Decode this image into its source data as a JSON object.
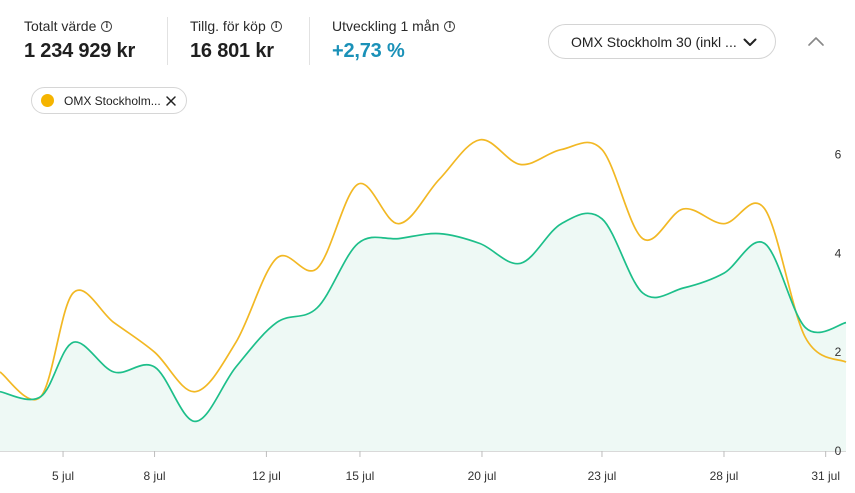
{
  "stats": {
    "total_value": {
      "label": "Totalt värde",
      "value": "1 234 929 kr"
    },
    "available": {
      "label": "Tillg. för köp",
      "value": "16 801 kr"
    },
    "development": {
      "label": "Utveckling 1 mån",
      "value": "+2,73 %"
    }
  },
  "index_select": {
    "selected": "OMX Stockholm 30 (inkl ..."
  },
  "comparison_chip": {
    "label": "OMX Stockholm..."
  },
  "colors": {
    "portfolio": "#1dbf8a",
    "portfolio_fill": "#eef9f5",
    "index": "#f2b824",
    "positive": "#1a91b8"
  },
  "chart_data": {
    "type": "line",
    "ylim": [
      0,
      6.7
    ],
    "y_ticks": [
      "0",
      "2",
      "4",
      "6"
    ],
    "x_ticks": [
      "5 jul",
      "8 jul",
      "12 jul",
      "15 jul",
      "20 jul",
      "23 jul",
      "28 jul",
      "31 jul"
    ],
    "grid": false,
    "series": [
      {
        "name": "OMX Stockholm...",
        "color": "#f2b824",
        "points": [
          [
            0.0,
            1.6
          ],
          [
            1.0,
            1.1
          ],
          [
            1.8,
            3.2
          ],
          [
            2.8,
            2.6
          ],
          [
            3.8,
            2.0
          ],
          [
            4.8,
            1.2
          ],
          [
            5.8,
            2.2
          ],
          [
            6.8,
            3.9
          ],
          [
            7.8,
            3.7
          ],
          [
            8.8,
            5.4
          ],
          [
            9.8,
            4.6
          ],
          [
            10.8,
            5.5
          ],
          [
            11.8,
            6.3
          ],
          [
            12.8,
            5.8
          ],
          [
            13.8,
            6.1
          ],
          [
            14.8,
            6.1
          ],
          [
            15.8,
            4.3
          ],
          [
            16.8,
            4.9
          ],
          [
            17.8,
            4.6
          ],
          [
            18.8,
            4.9
          ],
          [
            19.8,
            2.3
          ],
          [
            20.8,
            1.8
          ]
        ]
      },
      {
        "name": "",
        "color": "#1dbf8a",
        "points": [
          [
            0.0,
            1.2
          ],
          [
            1.0,
            1.1
          ],
          [
            1.8,
            2.2
          ],
          [
            2.8,
            1.6
          ],
          [
            3.8,
            1.7
          ],
          [
            4.8,
            0.6
          ],
          [
            5.8,
            1.7
          ],
          [
            6.8,
            2.6
          ],
          [
            7.8,
            2.9
          ],
          [
            8.8,
            4.2
          ],
          [
            9.8,
            4.3
          ],
          [
            10.8,
            4.4
          ],
          [
            11.8,
            4.2
          ],
          [
            12.8,
            3.8
          ],
          [
            13.8,
            4.6
          ],
          [
            14.8,
            4.7
          ],
          [
            15.8,
            3.2
          ],
          [
            16.8,
            3.3
          ],
          [
            17.8,
            3.6
          ],
          [
            18.8,
            4.2
          ],
          [
            19.8,
            2.5
          ],
          [
            20.8,
            2.6
          ]
        ]
      }
    ],
    "x_tick_positions": [
      1.55,
      3.8,
      6.55,
      8.85,
      11.85,
      14.8,
      17.8,
      20.3
    ]
  }
}
